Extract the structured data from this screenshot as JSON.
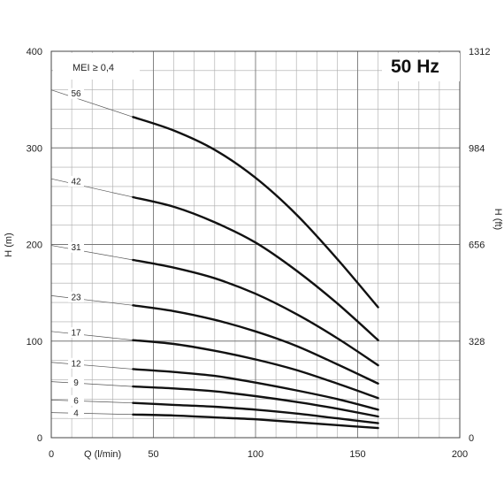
{
  "chart_data": {
    "type": "line",
    "title": "50 Hz",
    "annotation": "MEI ≥ 0,4",
    "xlabel": "Q (l/min)",
    "ylabel": "H (m)",
    "ylabel_right": "H (ft)",
    "xlim": [
      0,
      200
    ],
    "ylim": [
      0,
      400
    ],
    "xticks": [
      0,
      50,
      100,
      150,
      200
    ],
    "yticks": [
      0,
      100,
      200,
      300,
      400
    ],
    "yticks_right": [
      0,
      328,
      656,
      984,
      1312
    ],
    "grid": true,
    "series": [
      {
        "name": "56",
        "leader_start": [
          0,
          360
        ],
        "x": [
          40,
          60,
          80,
          100,
          120,
          140,
          160
        ],
        "y": [
          332,
          318,
          298,
          269,
          231,
          185,
          135
        ]
      },
      {
        "name": "42",
        "leader_start": [
          0,
          268
        ],
        "x": [
          40,
          60,
          80,
          100,
          120,
          140,
          160
        ],
        "y": [
          249,
          239,
          223,
          202,
          173,
          139,
          101
        ]
      },
      {
        "name": "31",
        "leader_start": [
          0,
          199
        ],
        "x": [
          40,
          60,
          80,
          100,
          120,
          140,
          160
        ],
        "y": [
          184,
          176,
          165,
          149,
          128,
          103,
          75
        ]
      },
      {
        "name": "23",
        "leader_start": [
          0,
          147
        ],
        "x": [
          40,
          60,
          80,
          100,
          120,
          140,
          160
        ],
        "y": [
          137,
          131,
          122,
          110,
          95,
          76,
          56
        ]
      },
      {
        "name": "17",
        "leader_start": [
          0,
          110
        ],
        "x": [
          40,
          60,
          80,
          100,
          120,
          140,
          160
        ],
        "y": [
          101,
          97,
          90,
          81,
          70,
          56,
          41
        ]
      },
      {
        "name": "12",
        "leader_start": [
          0,
          78
        ],
        "x": [
          40,
          60,
          80,
          100,
          120,
          140,
          160
        ],
        "y": [
          71,
          68,
          64,
          57,
          49,
          40,
          29
        ]
      },
      {
        "name": "9",
        "leader_start": [
          0,
          58
        ],
        "x": [
          40,
          60,
          80,
          100,
          120,
          140,
          160
        ],
        "y": [
          53,
          51,
          48,
          43,
          37,
          30,
          22
        ]
      },
      {
        "name": "6",
        "leader_start": [
          0,
          39
        ],
        "x": [
          40,
          60,
          80,
          100,
          120,
          140,
          160
        ],
        "y": [
          36,
          34,
          32,
          29,
          25,
          20,
          15
        ]
      },
      {
        "name": "4",
        "leader_start": [
          0,
          26
        ],
        "x": [
          40,
          60,
          80,
          100,
          120,
          140,
          160
        ],
        "y": [
          24,
          23,
          21,
          19,
          16,
          13,
          10
        ]
      }
    ]
  }
}
